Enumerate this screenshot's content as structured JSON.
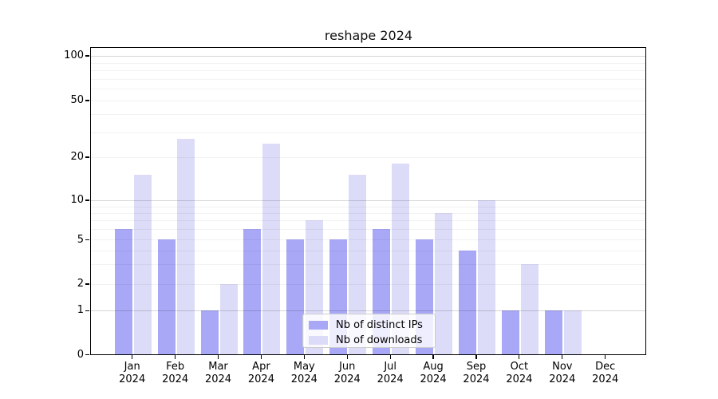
{
  "title": "reshape 2024",
  "chart_data": {
    "type": "bar",
    "title": "reshape 2024",
    "x_categories": [
      "Jan",
      "Feb",
      "Mar",
      "Apr",
      "May",
      "Jun",
      "Jul",
      "Aug",
      "Sep",
      "Oct",
      "Nov",
      "Dec"
    ],
    "x_year": "2024",
    "series": [
      {
        "name": "Nb of distinct IPs",
        "color": "#a8a8f7",
        "values": [
          6,
          5,
          1,
          6,
          5,
          5,
          6,
          5,
          4,
          1,
          1,
          0
        ]
      },
      {
        "name": "Nb of downloads",
        "color": "#dcdcf8",
        "values": [
          15,
          27,
          2,
          25,
          7,
          15,
          18,
          8,
          10,
          3,
          1,
          0
        ]
      }
    ],
    "y_axis": {
      "ticks": [
        0,
        1,
        2,
        5,
        10,
        20,
        50,
        100
      ],
      "minor_gridlines": [
        3,
        4,
        6,
        7,
        8,
        9,
        30,
        40,
        60,
        70,
        80,
        90
      ],
      "major_gridlines": [
        1,
        10,
        100
      ],
      "scale": "quasi-log with linear 0-1 segment",
      "range_top": 100
    },
    "grid": "on",
    "legend_position": "lower center"
  },
  "legend": {
    "items": [
      {
        "label": "Nb of distinct IPs"
      },
      {
        "label": "Nb of downloads"
      }
    ]
  }
}
